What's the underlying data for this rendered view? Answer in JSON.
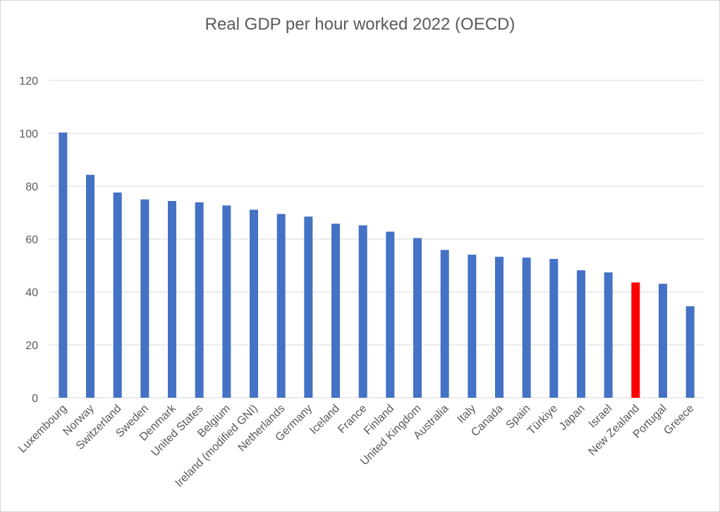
{
  "chart_data": {
    "type": "bar",
    "title": "Real GDP per hour worked 2022 (OECD)",
    "xlabel": "",
    "ylabel": "",
    "ylim": [
      0,
      120
    ],
    "yticks": [
      0,
      20,
      40,
      60,
      80,
      100,
      120
    ],
    "grid": true,
    "legend": "none",
    "categories": [
      "Luxembourg",
      "Norway",
      "Switzerland",
      "Sweden",
      "Denmark",
      "United States",
      "Belgium",
      "Ireland (modified GNI)",
      "Netherlands",
      "Germany",
      "Iceland",
      "France",
      "Finland",
      "United Kingdom",
      "Australia",
      "Italy",
      "Canada",
      "Spain",
      "Türkiye",
      "Japan",
      "Israel",
      "New Zealand",
      "Portugal",
      "Greece"
    ],
    "values": [
      100.3,
      84.3,
      77.6,
      75.0,
      74.4,
      73.9,
      72.7,
      71.1,
      69.5,
      68.5,
      65.8,
      65.2,
      62.8,
      60.4,
      55.9,
      54.1,
      53.3,
      53.0,
      52.5,
      48.2,
      47.4,
      43.6,
      43.1,
      34.6
    ],
    "colors": {
      "bar": "#4472c4",
      "highlight": "#ff0000"
    },
    "highlight_category": "New Zealand"
  }
}
